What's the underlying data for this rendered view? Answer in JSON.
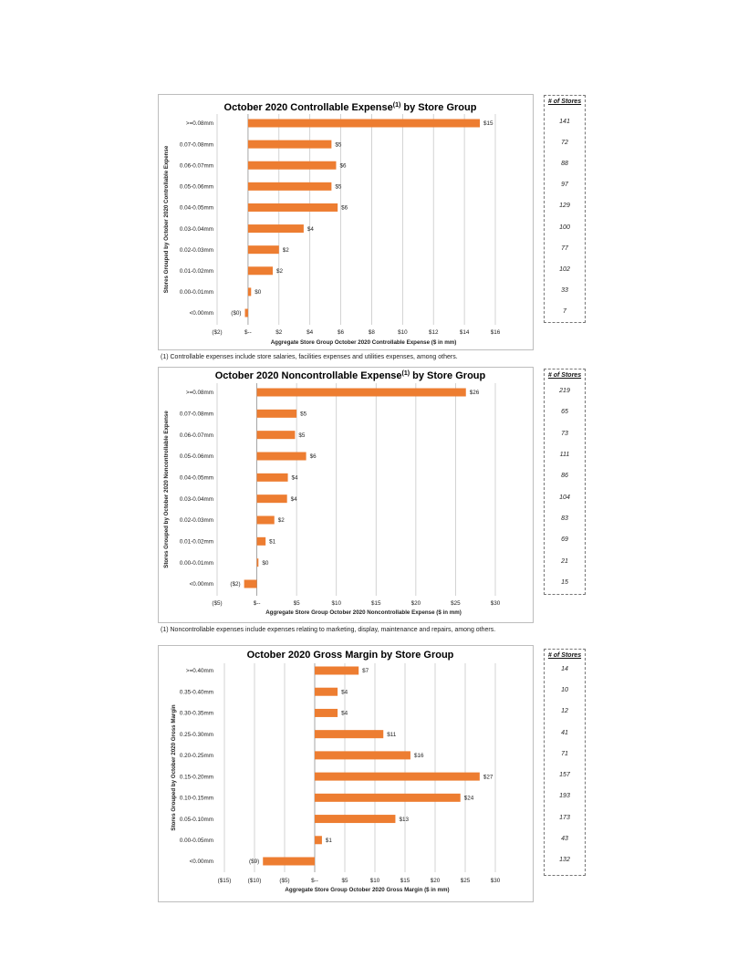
{
  "chart_data": [
    {
      "type": "bar",
      "orientation": "horizontal",
      "title_main": "October 2020 Controllable Expense",
      "title_sup": "(1)",
      "title_end": " by Store Group",
      "categories": [
        ">=0.08mm",
        "0.07-0.08mm",
        "0.06-0.07mm",
        "0.05-0.06mm",
        "0.04-0.05mm",
        "0.03-0.04mm",
        "0.02-0.03mm",
        "0.01-0.02mm",
        "0.00-0.01mm",
        "<0.00mm"
      ],
      "values": [
        15,
        5.4,
        5.7,
        5.4,
        5.8,
        3.6,
        2.0,
        1.6,
        0.2,
        -0.2
      ],
      "value_labels": [
        "$15",
        "$5",
        "$6",
        "$5",
        "$6",
        "$4",
        "$2",
        "$2",
        "$0",
        "($0)"
      ],
      "xlim": [
        -2,
        16
      ],
      "ticks": [
        -2,
        0,
        2,
        4,
        6,
        8,
        10,
        12,
        14,
        16
      ],
      "tick_labels": [
        "($2)",
        "$--",
        "$2",
        "$4",
        "$6",
        "$8",
        "$10",
        "$12",
        "$14",
        "$16"
      ],
      "xlabel": "Aggregate Store Group October 2020 Controllable Expense ($ in mm)",
      "ylabel": "Stores Grouped by October 2020 Controllable Expense",
      "bar_color": "#ED7D31",
      "grid": true,
      "footnote": "(1) Controllable expenses include store salaries, facilities expenses and utilities expenses, among others.",
      "stores_header": "# of Stores",
      "stores": [
        "141",
        "72",
        "88",
        "97",
        "129",
        "100",
        "77",
        "102",
        "33",
        "7"
      ]
    },
    {
      "type": "bar",
      "orientation": "horizontal",
      "title_main": "October 2020 Noncontrollable Expense",
      "title_sup": "(1)",
      "title_end": " by Store Group",
      "categories": [
        ">=0.08mm",
        "0.07-0.08mm",
        "0.06-0.07mm",
        "0.05-0.06mm",
        "0.04-0.05mm",
        "0.03-0.04mm",
        "0.02-0.03mm",
        "0.01-0.02mm",
        "0.00-0.01mm",
        "<0.00mm"
      ],
      "values": [
        26.3,
        5.0,
        4.8,
        6.2,
        3.9,
        3.8,
        2.2,
        1.1,
        0.2,
        -1.6
      ],
      "value_labels": [
        "$26",
        "$5",
        "$5",
        "$6",
        "$4",
        "$4",
        "$2",
        "$1",
        "$0",
        "($2)"
      ],
      "xlim": [
        -5,
        30
      ],
      "ticks": [
        -5,
        0,
        5,
        10,
        15,
        20,
        25,
        30
      ],
      "tick_labels": [
        "($5)",
        "$--",
        "$5",
        "$10",
        "$15",
        "$20",
        "$25",
        "$30"
      ],
      "xlabel": "Aggregate Store Group October 2020 Noncontrollable Expense ($ in mm)",
      "ylabel": "Stores Grouped by October 2020 Noncontrollable Expense",
      "bar_color": "#ED7D31",
      "grid": true,
      "footnote": "(1) Noncontrollable expenses include expenses relating to marketing, display, maintenance and repairs, among others.",
      "stores_header": "# of Stores",
      "stores": [
        "219",
        "65",
        "73",
        "111",
        "86",
        "104",
        "83",
        "69",
        "21",
        "15"
      ]
    },
    {
      "type": "bar",
      "orientation": "horizontal",
      "title_main": "October 2020 Gross Margin by Store Group",
      "title_sup": "",
      "title_end": "",
      "categories": [
        ">=0.40mm",
        "0.35-0.40mm",
        "0.30-0.35mm",
        "0.25-0.30mm",
        "0.20-0.25mm",
        "0.15-0.20mm",
        "0.10-0.15mm",
        "0.05-0.10mm",
        "0.00-0.05mm",
        "<0.00mm"
      ],
      "values": [
        7.3,
        3.8,
        3.8,
        11.4,
        15.9,
        27.4,
        24.2,
        13.4,
        1.2,
        -8.6
      ],
      "value_labels": [
        "$7",
        "$4",
        "$4",
        "$11",
        "$16",
        "$27",
        "$24",
        "$13",
        "$1",
        "($9)"
      ],
      "xlim": [
        -15,
        30
      ],
      "ticks": [
        -15,
        -10,
        -5,
        0,
        5,
        10,
        15,
        20,
        25,
        30
      ],
      "tick_labels": [
        "($15)",
        "($10)",
        "($5)",
        "$--",
        "$5",
        "$10",
        "$15",
        "$20",
        "$25",
        "$30"
      ],
      "xlabel": "Aggregate Store Group October 2020 Gross Margin ($ in mm)",
      "ylabel": "Stores Grouped by October 2020  Gross Margin",
      "bar_color": "#ED7D31",
      "grid": true,
      "footnote": "",
      "stores_header": "# of Stores",
      "stores": [
        "14",
        "10",
        "12",
        "41",
        "71",
        "157",
        "193",
        "173",
        "43",
        "132"
      ]
    }
  ]
}
